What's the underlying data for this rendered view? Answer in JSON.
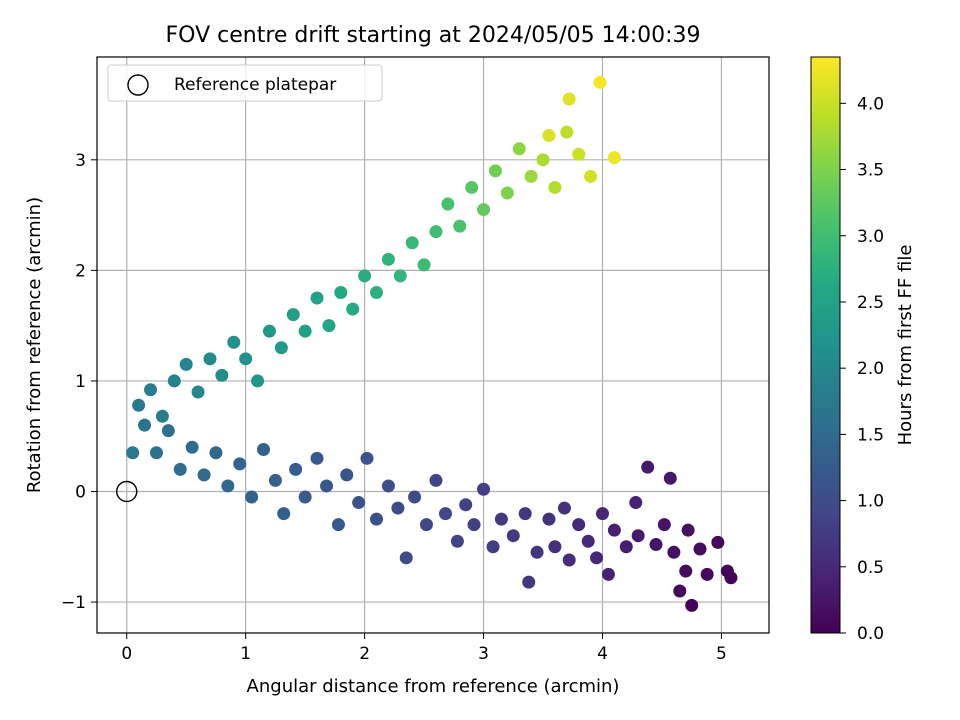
{
  "chart_data": {
    "type": "scatter",
    "title": "FOV centre drift starting at 2024/05/05 14:00:39",
    "xlabel": "Angular distance from reference (arcmin)",
    "ylabel": "Rotation from reference (arcmin)",
    "xlim": [
      -0.25,
      5.4
    ],
    "ylim": [
      -1.28,
      3.93
    ],
    "xticks": [
      0,
      1,
      2,
      3,
      4,
      5
    ],
    "yticks": [
      -1,
      0,
      1,
      2,
      3
    ],
    "xtick_labels": [
      "0",
      "1",
      "2",
      "3",
      "4",
      "5"
    ],
    "ytick_labels": [
      "−1",
      "0",
      "1",
      "2",
      "3"
    ],
    "grid": true,
    "legend_position": "top-left",
    "legend": [
      {
        "label": "Reference platepar",
        "marker": "open-circle"
      }
    ],
    "reference_point": {
      "x": 0,
      "y": 0
    },
    "colorbar": {
      "label": "Hours from first FF file",
      "min": 0.0,
      "max": 4.35,
      "colormap": "viridis",
      "ticks": [
        0.0,
        0.5,
        1.0,
        1.5,
        2.0,
        2.5,
        3.0,
        3.5,
        4.0
      ],
      "tick_labels": [
        "0.0",
        "0.5",
        "1.0",
        "1.5",
        "2.0",
        "2.5",
        "3.0",
        "3.5",
        "4.0"
      ]
    },
    "series": [
      {
        "values_note": "color = hours from first FF file",
        "points": [
          {
            "x": 4.75,
            "y": -1.03,
            "c": 0.05
          },
          {
            "x": 5.08,
            "y": -0.78,
            "c": 0.03
          },
          {
            "x": 5.05,
            "y": -0.72,
            "c": 0.05
          },
          {
            "x": 4.97,
            "y": -0.46,
            "c": 0.08
          },
          {
            "x": 4.88,
            "y": -0.75,
            "c": 0.1
          },
          {
            "x": 4.7,
            "y": -0.72,
            "c": 0.12
          },
          {
            "x": 4.65,
            "y": -0.9,
            "c": 0.1
          },
          {
            "x": 4.82,
            "y": -0.52,
            "c": 0.15
          },
          {
            "x": 4.6,
            "y": -0.55,
            "c": 0.18
          },
          {
            "x": 4.72,
            "y": -0.35,
            "c": 0.2
          },
          {
            "x": 4.52,
            "y": -0.3,
            "c": 0.22
          },
          {
            "x": 4.45,
            "y": -0.48,
            "c": 0.25
          },
          {
            "x": 4.38,
            "y": 0.22,
            "c": 0.3
          },
          {
            "x": 4.57,
            "y": 0.12,
            "c": 0.28
          },
          {
            "x": 4.3,
            "y": -0.4,
            "c": 0.32
          },
          {
            "x": 4.2,
            "y": -0.5,
            "c": 0.35
          },
          {
            "x": 4.1,
            "y": -0.35,
            "c": 0.38
          },
          {
            "x": 4.28,
            "y": -0.1,
            "c": 0.4
          },
          {
            "x": 4.05,
            "y": -0.75,
            "c": 0.42
          },
          {
            "x": 3.95,
            "y": -0.6,
            "c": 0.45
          },
          {
            "x": 4.0,
            "y": -0.2,
            "c": 0.48
          },
          {
            "x": 3.88,
            "y": -0.45,
            "c": 0.5
          },
          {
            "x": 3.8,
            "y": -0.3,
            "c": 0.52
          },
          {
            "x": 3.72,
            "y": -0.62,
            "c": 0.55
          },
          {
            "x": 3.68,
            "y": -0.15,
            "c": 0.58
          },
          {
            "x": 3.6,
            "y": -0.5,
            "c": 0.6
          },
          {
            "x": 3.55,
            "y": -0.25,
            "c": 0.62
          },
          {
            "x": 3.45,
            "y": -0.55,
            "c": 0.65
          },
          {
            "x": 3.38,
            "y": -0.82,
            "c": 0.68
          },
          {
            "x": 3.35,
            "y": -0.2,
            "c": 0.7
          },
          {
            "x": 3.25,
            "y": -0.4,
            "c": 0.72
          },
          {
            "x": 3.15,
            "y": -0.25,
            "c": 0.75
          },
          {
            "x": 3.08,
            "y": -0.5,
            "c": 0.78
          },
          {
            "x": 3.0,
            "y": 0.02,
            "c": 0.8
          },
          {
            "x": 2.92,
            "y": -0.3,
            "c": 0.82
          },
          {
            "x": 2.85,
            "y": -0.12,
            "c": 0.85
          },
          {
            "x": 2.78,
            "y": -0.45,
            "c": 0.88
          },
          {
            "x": 2.68,
            "y": -0.2,
            "c": 0.9
          },
          {
            "x": 2.6,
            "y": 0.1,
            "c": 0.92
          },
          {
            "x": 2.52,
            "y": -0.3,
            "c": 0.95
          },
          {
            "x": 2.42,
            "y": -0.05,
            "c": 0.98
          },
          {
            "x": 2.35,
            "y": -0.6,
            "c": 1.0
          },
          {
            "x": 2.28,
            "y": -0.15,
            "c": 1.02
          },
          {
            "x": 2.2,
            "y": 0.05,
            "c": 1.05
          },
          {
            "x": 2.1,
            "y": -0.25,
            "c": 1.08
          },
          {
            "x": 2.02,
            "y": 0.3,
            "c": 1.1
          },
          {
            "x": 1.95,
            "y": -0.1,
            "c": 1.12
          },
          {
            "x": 1.85,
            "y": 0.15,
            "c": 1.15
          },
          {
            "x": 1.78,
            "y": -0.3,
            "c": 1.18
          },
          {
            "x": 1.68,
            "y": 0.05,
            "c": 1.2
          },
          {
            "x": 1.6,
            "y": 0.3,
            "c": 1.22
          },
          {
            "x": 1.5,
            "y": -0.05,
            "c": 1.25
          },
          {
            "x": 1.42,
            "y": 0.2,
            "c": 1.28
          },
          {
            "x": 1.32,
            "y": -0.2,
            "c": 1.3
          },
          {
            "x": 1.25,
            "y": 0.1,
            "c": 1.32
          },
          {
            "x": 1.15,
            "y": 0.38,
            "c": 1.35
          },
          {
            "x": 1.05,
            "y": -0.05,
            "c": 1.38
          },
          {
            "x": 0.95,
            "y": 0.25,
            "c": 1.4
          },
          {
            "x": 0.85,
            "y": 0.05,
            "c": 1.45
          },
          {
            "x": 0.75,
            "y": 0.35,
            "c": 1.48
          },
          {
            "x": 0.65,
            "y": 0.15,
            "c": 1.5
          },
          {
            "x": 0.55,
            "y": 0.4,
            "c": 1.55
          },
          {
            "x": 0.45,
            "y": 0.2,
            "c": 1.58
          },
          {
            "x": 0.35,
            "y": 0.55,
            "c": 1.62
          },
          {
            "x": 0.25,
            "y": 0.35,
            "c": 1.65
          },
          {
            "x": 0.15,
            "y": 0.6,
            "c": 1.7
          },
          {
            "x": 0.05,
            "y": 0.35,
            "c": 1.75
          },
          {
            "x": 0.1,
            "y": 0.78,
            "c": 1.78
          },
          {
            "x": 0.2,
            "y": 0.92,
            "c": 1.82
          },
          {
            "x": 0.3,
            "y": 0.68,
            "c": 1.85
          },
          {
            "x": 0.4,
            "y": 1.0,
            "c": 1.9
          },
          {
            "x": 0.5,
            "y": 1.15,
            "c": 1.95
          },
          {
            "x": 0.6,
            "y": 0.9,
            "c": 2.0
          },
          {
            "x": 0.7,
            "y": 1.2,
            "c": 2.05
          },
          {
            "x": 0.8,
            "y": 1.05,
            "c": 2.1
          },
          {
            "x": 0.9,
            "y": 1.35,
            "c": 2.15
          },
          {
            "x": 1.0,
            "y": 1.2,
            "c": 2.2
          },
          {
            "x": 1.1,
            "y": 1.0,
            "c": 2.25
          },
          {
            "x": 1.2,
            "y": 1.45,
            "c": 2.3
          },
          {
            "x": 1.3,
            "y": 1.3,
            "c": 2.35
          },
          {
            "x": 1.4,
            "y": 1.6,
            "c": 2.4
          },
          {
            "x": 1.5,
            "y": 1.45,
            "c": 2.45
          },
          {
            "x": 1.6,
            "y": 1.75,
            "c": 2.5
          },
          {
            "x": 1.7,
            "y": 1.5,
            "c": 2.55
          },
          {
            "x": 1.8,
            "y": 1.8,
            "c": 2.6
          },
          {
            "x": 1.9,
            "y": 1.65,
            "c": 2.65
          },
          {
            "x": 2.0,
            "y": 1.95,
            "c": 2.7
          },
          {
            "x": 2.1,
            "y": 1.8,
            "c": 2.75
          },
          {
            "x": 2.2,
            "y": 2.1,
            "c": 2.8
          },
          {
            "x": 2.3,
            "y": 1.95,
            "c": 2.85
          },
          {
            "x": 2.4,
            "y": 2.25,
            "c": 2.9
          },
          {
            "x": 2.5,
            "y": 2.05,
            "c": 2.95
          },
          {
            "x": 2.6,
            "y": 2.35,
            "c": 3.0
          },
          {
            "x": 2.7,
            "y": 2.6,
            "c": 3.05
          },
          {
            "x": 2.8,
            "y": 2.4,
            "c": 3.1
          },
          {
            "x": 2.9,
            "y": 2.75,
            "c": 3.2
          },
          {
            "x": 3.0,
            "y": 2.55,
            "c": 3.3
          },
          {
            "x": 3.1,
            "y": 2.9,
            "c": 3.4
          },
          {
            "x": 3.2,
            "y": 2.7,
            "c": 3.5
          },
          {
            "x": 3.3,
            "y": 3.1,
            "c": 3.6
          },
          {
            "x": 3.4,
            "y": 2.85,
            "c": 3.7
          },
          {
            "x": 3.5,
            "y": 3.0,
            "c": 3.8
          },
          {
            "x": 3.6,
            "y": 2.75,
            "c": 3.85
          },
          {
            "x": 3.7,
            "y": 3.25,
            "c": 3.9
          },
          {
            "x": 3.8,
            "y": 3.05,
            "c": 4.0
          },
          {
            "x": 3.9,
            "y": 2.85,
            "c": 4.05
          },
          {
            "x": 3.72,
            "y": 3.55,
            "c": 4.15
          },
          {
            "x": 3.98,
            "y": 3.7,
            "c": 4.3
          },
          {
            "x": 4.1,
            "y": 3.02,
            "c": 4.25
          },
          {
            "x": 3.55,
            "y": 3.22,
            "c": 4.1
          }
        ]
      }
    ]
  }
}
